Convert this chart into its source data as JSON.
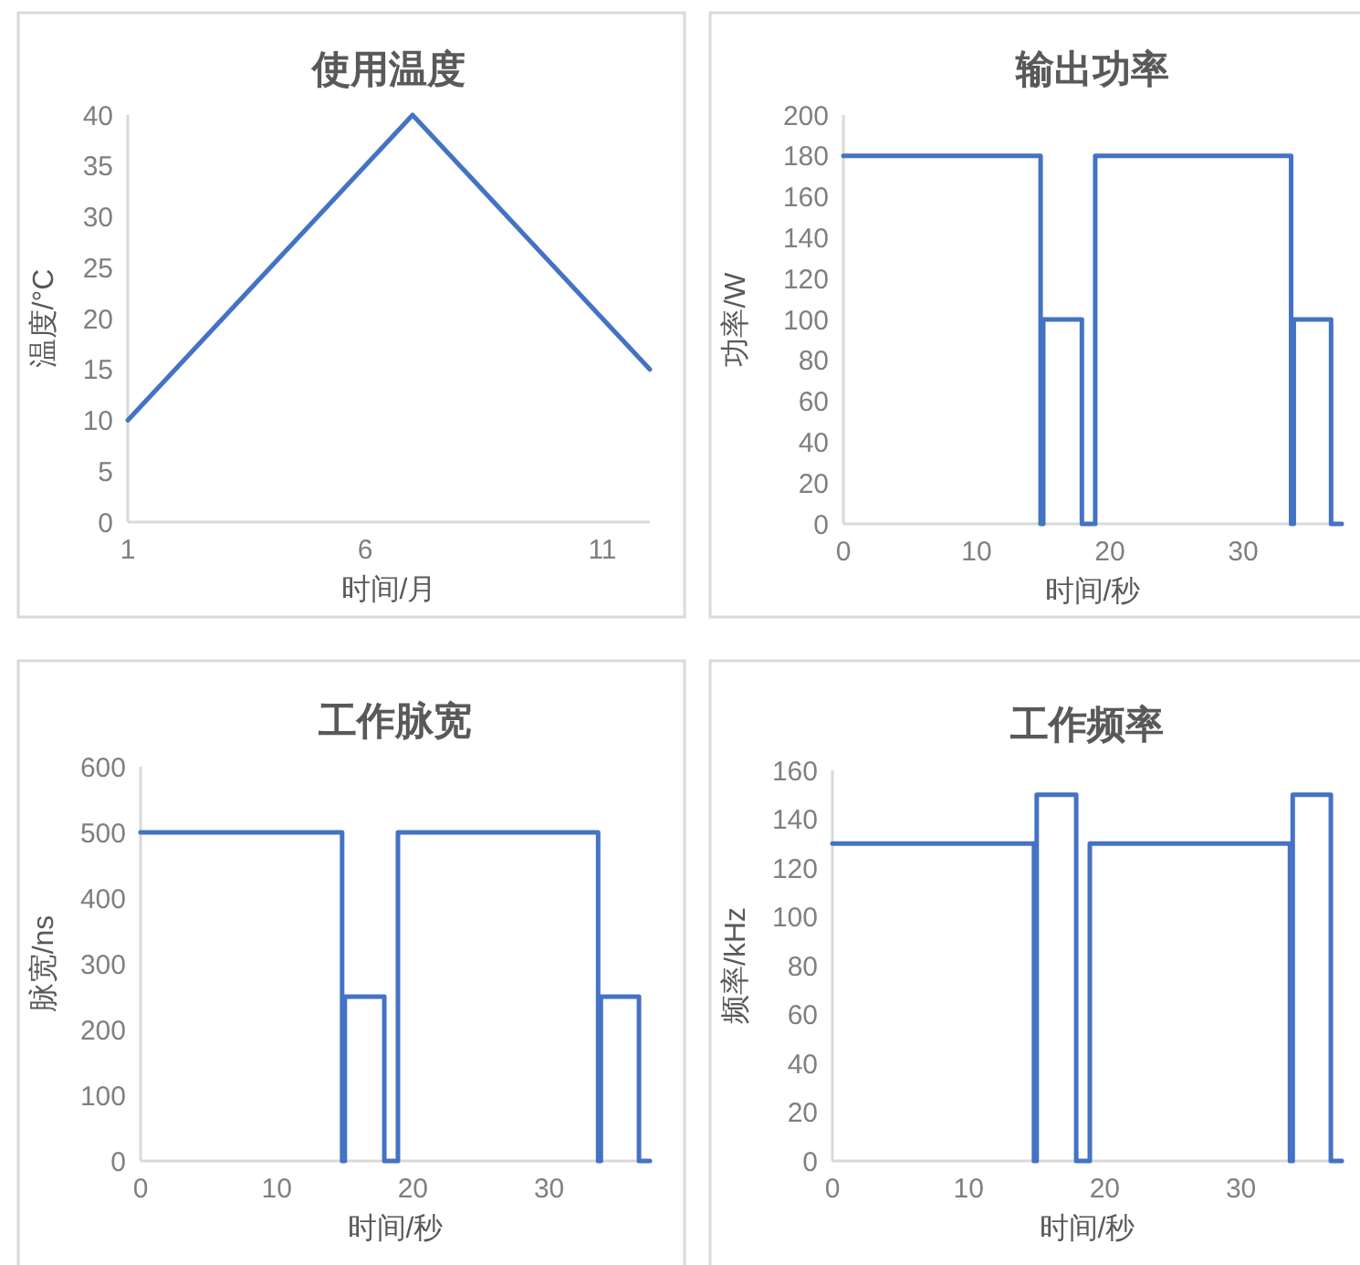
{
  "chart_data": [
    {
      "type": "line",
      "title": "使用温度",
      "xlabel": "时间/月",
      "ylabel": "温度/°C",
      "xlim": [
        1,
        12
      ],
      "xticks": [
        1,
        6,
        11
      ],
      "ylim": [
        0,
        40
      ],
      "yticks": [
        0,
        5,
        10,
        15,
        20,
        25,
        30,
        35,
        40
      ],
      "series": [
        {
          "color": "#4472c4",
          "x": [
            1,
            2,
            3,
            4,
            5,
            6,
            7,
            8,
            9,
            10,
            11,
            12
          ],
          "values": [
            10,
            15,
            20,
            25,
            30,
            35,
            40,
            35,
            30,
            25,
            20,
            15
          ]
        }
      ]
    },
    {
      "type": "line",
      "title": "输出功率",
      "xlabel": "时间/秒",
      "ylabel": "功率/W",
      "xlim": [
        0,
        37.4
      ],
      "xticks": [
        0,
        10,
        20,
        30
      ],
      "ylim": [
        0,
        200
      ],
      "yticks": [
        0,
        20,
        40,
        60,
        80,
        100,
        120,
        140,
        160,
        180,
        200
      ],
      "series": [
        {
          "color": "#4472c4",
          "x": [
            0,
            14.8,
            14.8,
            15,
            15,
            17.9,
            17.9,
            18.9,
            18.9,
            33.6,
            33.6,
            33.8,
            33.8,
            36.6,
            36.6,
            37.4
          ],
          "values": [
            180,
            180,
            0,
            0,
            100,
            100,
            0,
            0,
            180,
            180,
            0,
            0,
            100,
            100,
            0,
            0
          ]
        }
      ]
    },
    {
      "type": "line",
      "title": "工作脉宽",
      "xlabel": "时间/秒",
      "ylabel": "脉宽/ns",
      "xlim": [
        0,
        37.4
      ],
      "xticks": [
        0,
        10,
        20,
        30
      ],
      "ylim": [
        0,
        600
      ],
      "yticks": [
        0,
        100,
        200,
        300,
        400,
        500,
        600
      ],
      "series": [
        {
          "color": "#4472c4",
          "x": [
            0,
            14.8,
            14.8,
            15,
            15,
            17.9,
            17.9,
            18.9,
            18.9,
            33.6,
            33.6,
            33.8,
            33.8,
            36.6,
            36.6,
            37.4
          ],
          "values": [
            500,
            500,
            0,
            0,
            250,
            250,
            0,
            0,
            500,
            500,
            0,
            0,
            250,
            250,
            0,
            0
          ]
        }
      ]
    },
    {
      "type": "line",
      "title": "工作频率",
      "xlabel": "时间/秒",
      "ylabel": "频率/kHz",
      "xlim": [
        0,
        37.4
      ],
      "xticks": [
        0,
        10,
        20,
        30
      ],
      "ylim": [
        0,
        160
      ],
      "yticks": [
        0,
        20,
        40,
        60,
        80,
        100,
        120,
        140,
        160
      ],
      "series": [
        {
          "color": "#4472c4",
          "x": [
            0,
            14.8,
            14.8,
            15,
            15,
            17.9,
            17.9,
            18.9,
            18.9,
            33.6,
            33.6,
            33.8,
            33.8,
            36.6,
            36.6,
            37.4
          ],
          "values": [
            130,
            130,
            0,
            0,
            150,
            150,
            0,
            0,
            130,
            130,
            0,
            0,
            150,
            150,
            0,
            0
          ]
        }
      ]
    }
  ]
}
